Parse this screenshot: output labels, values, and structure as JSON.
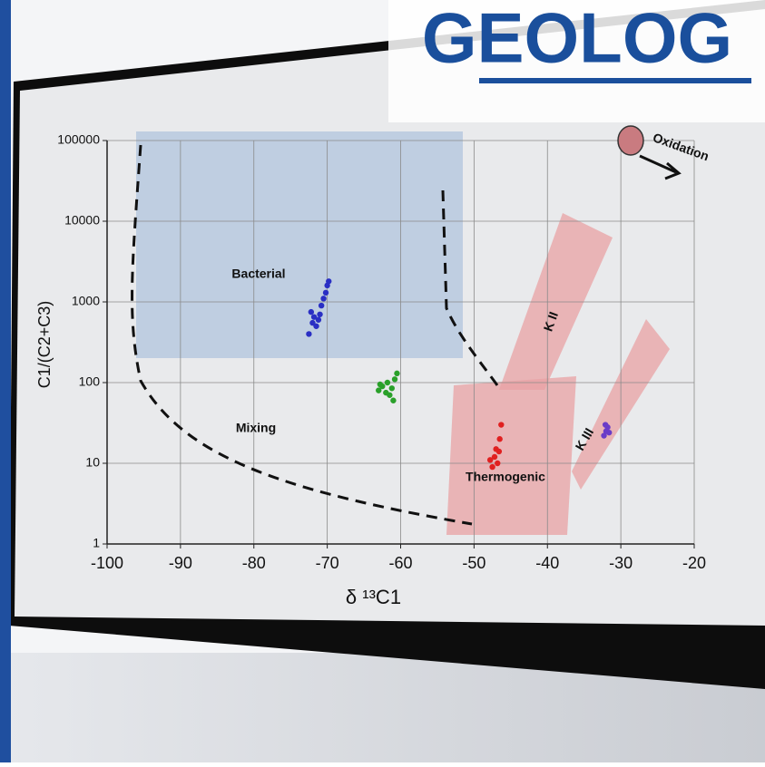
{
  "logo": "GEOLOG",
  "chart_data": {
    "type": "scatter",
    "x_label": "δ ¹³C1",
    "y_label": "C1/(C2+C3)",
    "annotations": [
      "Bacterial",
      "Mixing",
      "Thermogenic",
      "K II",
      "K III",
      "Oxidation"
    ],
    "xlim": [
      -100,
      -20
    ],
    "xticks": [
      -100,
      -90,
      -80,
      -70,
      -60,
      -50,
      -40,
      -30,
      -20
    ],
    "ylim": [
      1,
      100000
    ],
    "yticks": [
      1,
      10,
      100,
      1000,
      10000,
      100000
    ],
    "log_y": true,
    "grid": true,
    "series": [
      {
        "color": "#2a2fc4",
        "x": [
          -72.5,
          -72,
          -71.8,
          -71.5,
          -71,
          -70.8,
          -70.5,
          -70.2,
          -70,
          -69.8,
          -71.2,
          -72.2
        ],
        "values": [
          400,
          550,
          650,
          500,
          700,
          900,
          1100,
          1300,
          1600,
          1800,
          600,
          750
        ]
      },
      {
        "color": "#2aa02a",
        "x": [
          -63,
          -62.5,
          -62,
          -61.8,
          -61.5,
          -61,
          -60.8,
          -60.5,
          -62.8,
          -61.2
        ],
        "values": [
          80,
          90,
          75,
          100,
          70,
          60,
          110,
          130,
          95,
          85
        ]
      },
      {
        "color": "#e02020",
        "x": [
          -47.5,
          -47.2,
          -47,
          -46.8,
          -46.5,
          -46.3,
          -47.8,
          -46.6
        ],
        "values": [
          9,
          12,
          15,
          10,
          20,
          30,
          11,
          14
        ]
      },
      {
        "color": "#6a3cc8",
        "x": [
          -32.3,
          -32,
          -31.8,
          -31.6,
          -32.1
        ],
        "values": [
          22,
          25,
          28,
          24,
          30
        ]
      }
    ]
  }
}
